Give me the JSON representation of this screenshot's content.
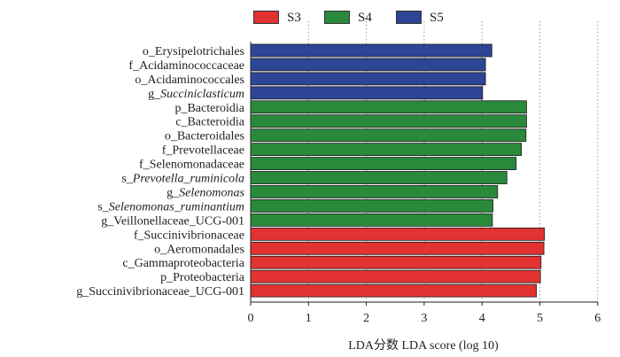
{
  "chart_data": {
    "type": "bar",
    "orientation": "horizontal",
    "xlabel": "LDA分数  LDA score (log 10)",
    "xlim": [
      0,
      6
    ],
    "xticks": [
      0,
      1,
      2,
      3,
      4,
      5,
      6
    ],
    "grid": "vertical dotted",
    "legend_position": "top",
    "groups": [
      {
        "name": "S3",
        "color": "#e23232"
      },
      {
        "name": "S4",
        "color": "#2a8a3c"
      },
      {
        "name": "S5",
        "color": "#2e4596"
      }
    ],
    "bars": [
      {
        "prefix": "o_",
        "name": "Erysipelotrichales",
        "italic": false,
        "group": "S5",
        "value": 4.17
      },
      {
        "prefix": "f_",
        "name": "Acidaminococcaceae",
        "italic": false,
        "group": "S5",
        "value": 4.06
      },
      {
        "prefix": "o_",
        "name": "Acidaminococcales",
        "italic": false,
        "group": "S5",
        "value": 4.06
      },
      {
        "prefix": "g_",
        "name": "Succiniclasticum",
        "italic": true,
        "group": "S5",
        "value": 4.01
      },
      {
        "prefix": "p_",
        "name": "Bacteroidia",
        "italic": false,
        "group": "S4",
        "value": 4.77
      },
      {
        "prefix": "c_",
        "name": "Bacteroidia",
        "italic": false,
        "group": "S4",
        "value": 4.77
      },
      {
        "prefix": "o_",
        "name": "Bacteroidales",
        "italic": false,
        "group": "S4",
        "value": 4.76
      },
      {
        "prefix": "f_",
        "name": "Prevotellaceae",
        "italic": false,
        "group": "S4",
        "value": 4.68
      },
      {
        "prefix": "f_",
        "name": "Selenomonadaceae",
        "italic": false,
        "group": "S4",
        "value": 4.59
      },
      {
        "prefix": "s_",
        "name": "Prevotella_ruminicola",
        "italic": true,
        "group": "S4",
        "value": 4.43
      },
      {
        "prefix": "g_",
        "name": "Selenomonas",
        "italic": true,
        "group": "S4",
        "value": 4.27
      },
      {
        "prefix": "s_",
        "name": "Selenomonas_ruminantium",
        "italic": true,
        "group": "S4",
        "value": 4.19
      },
      {
        "prefix": "g_",
        "name": "Veillonellaceae_UCG-001",
        "italic": false,
        "group": "S4",
        "value": 4.18
      },
      {
        "prefix": "f_",
        "name": "Succinivibrionaceae",
        "italic": false,
        "group": "S3",
        "value": 5.08
      },
      {
        "prefix": "o_",
        "name": "Aeromonadales",
        "italic": false,
        "group": "S3",
        "value": 5.07
      },
      {
        "prefix": "c_",
        "name": "Gammaproteobacteria",
        "italic": false,
        "group": "S3",
        "value": 5.02
      },
      {
        "prefix": "p_",
        "name": "Proteobacteria",
        "italic": false,
        "group": "S3",
        "value": 5.01
      },
      {
        "prefix": "g_",
        "name": "Succinivibrionaceae_UCG-001",
        "italic": false,
        "group": "S3",
        "value": 4.94
      }
    ]
  }
}
